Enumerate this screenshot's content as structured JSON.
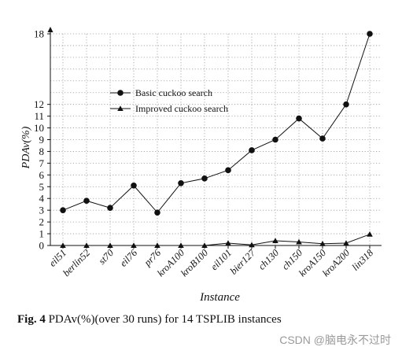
{
  "chart_data": {
    "type": "line",
    "xlabel": "Instance",
    "ylabel": "PDAv(%)",
    "categories": [
      "eil51",
      "berlin52",
      "st70",
      "eil76",
      "pr76",
      "kroA100",
      "kroB100",
      "eil101",
      "bier127",
      "ch130",
      "ch150",
      "kroA150",
      "kroA200",
      "lin318"
    ],
    "yticks": [
      0,
      1,
      2,
      3,
      4,
      5,
      6,
      7,
      8,
      9,
      10,
      11,
      12,
      18
    ],
    "ylim": [
      0,
      18
    ],
    "grid": true,
    "legend_position": "upper-left",
    "series": [
      {
        "name": "Basic cuckoo search",
        "marker": "circle",
        "values": [
          3.0,
          3.8,
          3.2,
          5.1,
          2.8,
          5.3,
          5.7,
          6.4,
          8.1,
          9.0,
          10.8,
          9.1,
          12.0,
          18.0
        ]
      },
      {
        "name": "Improved cuckoo search",
        "marker": "triangle",
        "values": [
          0.0,
          0.0,
          0.0,
          0.0,
          0.0,
          0.0,
          0.0,
          0.2,
          0.05,
          0.4,
          0.3,
          0.15,
          0.2,
          0.95
        ]
      }
    ]
  },
  "caption": {
    "fig_label": "Fig. 4",
    "text": "PDAv(%)(over 30 runs) for 14 TSPLIB instances"
  },
  "watermark": "CSDN @脑电永不过时"
}
